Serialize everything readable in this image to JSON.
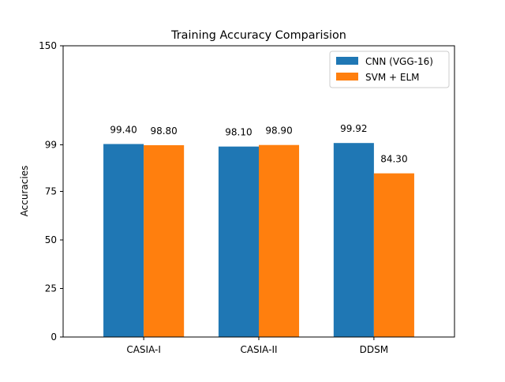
{
  "chart_data": {
    "type": "bar",
    "title": "Training Accuracy Comparision",
    "xlabel": "",
    "ylabel": "Accuracies",
    "categories": [
      "CASIA-I",
      "CASIA-II",
      "DDSM"
    ],
    "series": [
      {
        "name": "CNN (VGG-16)",
        "color": "#1f77b4",
        "values": [
          99.4,
          98.1,
          99.92
        ],
        "labels": [
          "99.40",
          "98.10",
          "99.92"
        ]
      },
      {
        "name": "SVM + ELM",
        "color": "#ff7f0e",
        "values": [
          98.8,
          98.9,
          84.3
        ],
        "labels": [
          "98.80",
          "98.90",
          "84.30"
        ]
      }
    ],
    "ylim": [
      0,
      150
    ],
    "yticks": [
      0,
      25,
      50,
      75,
      99,
      150
    ],
    "ytick_labels": [
      "0",
      "25",
      "50",
      "75",
      "99",
      "150"
    ],
    "grid": false,
    "legend_position": "top-right"
  }
}
